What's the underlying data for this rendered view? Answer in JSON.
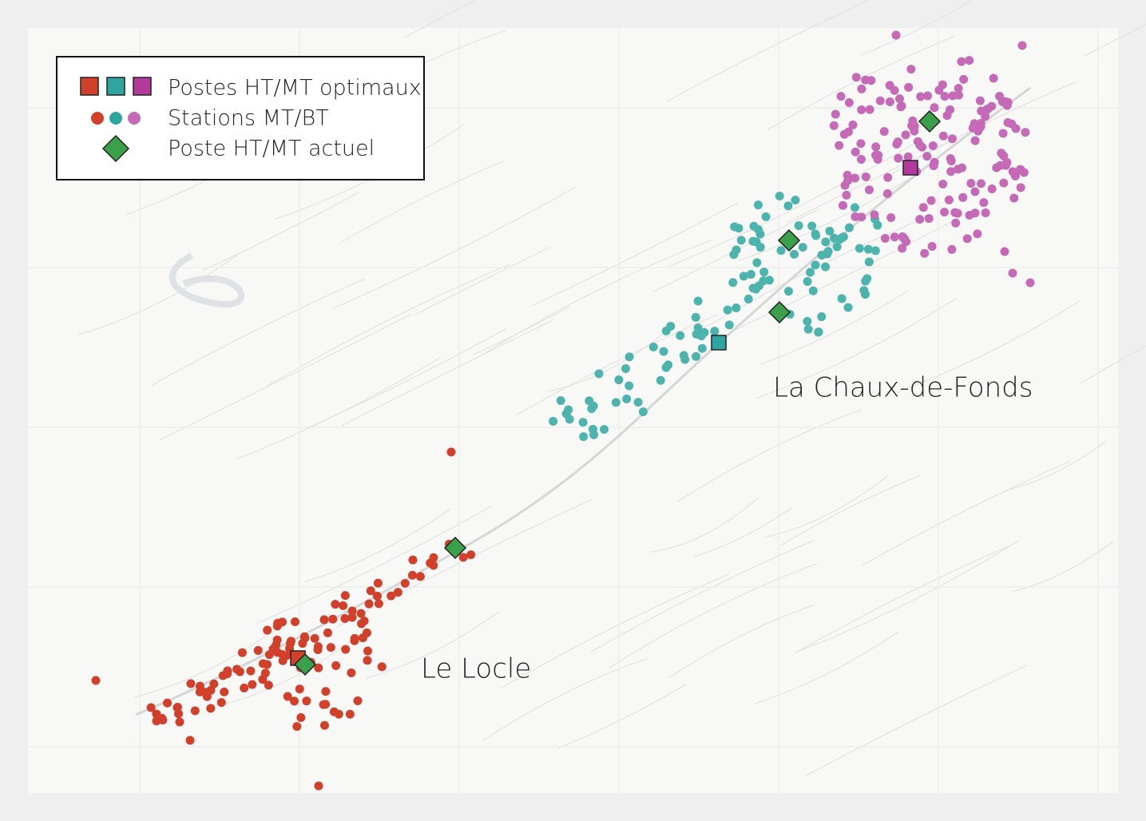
{
  "legend": {
    "items": [
      "Postes HT/MT optimaux",
      "Stations MT/BT",
      "Poste HT/MT actuel"
    ]
  },
  "labels": [
    "La Chaux-de-Fonds",
    "Le Locle"
  ]
}
